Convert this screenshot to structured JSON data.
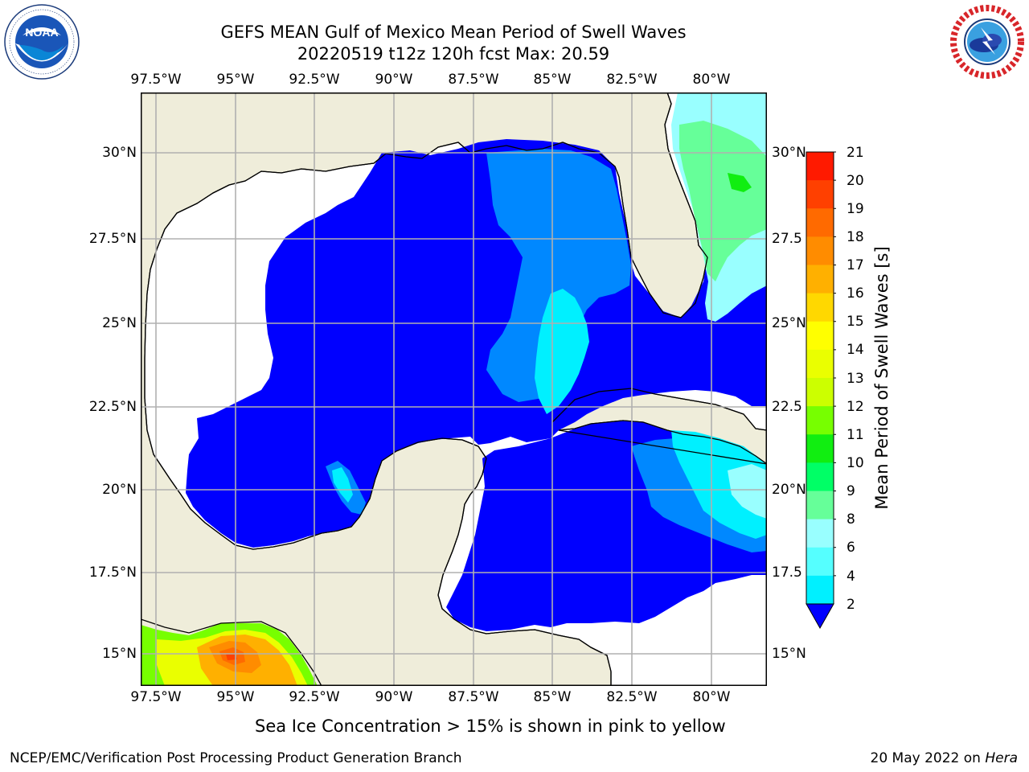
{
  "title": {
    "line1": "GEFS MEAN Gulf of Mexico Mean Period of Swell Waves",
    "line2": "20220519 t12z 120h fcst   Max: 20.59"
  },
  "logos": {
    "left_icon": "noaa-logo",
    "left_ring_text": "NATIONAL OCEANIC AND ATMOSPHERIC ADMINISTRATION · U.S. DEPARTMENT OF COMMERCE ·",
    "left_center_text": "NOAA",
    "right_icon": "nws-logo",
    "right_ring_text": "NATIONAL WEATHER SERVICE"
  },
  "map": {
    "lon_labels": [
      "97.5°W",
      "95°W",
      "92.5°W",
      "90°W",
      "87.5°W",
      "85°W",
      "82.5°W",
      "80°W"
    ],
    "lat_labels_left": [
      "30°N",
      "27.5°N",
      "25°N",
      "22.5°N",
      "20°N",
      "17.5°N",
      "15°N"
    ],
    "lat_labels_right": [
      "30°N",
      "27.5",
      "25°N",
      "22.5",
      "20°N",
      "17.5",
      "15°N"
    ],
    "colors": {
      "land": "#efedda",
      "ocean_none": "#ffffff",
      "grid": "#b0b0b0"
    }
  },
  "colorbar": {
    "label": "Mean Period of Swell Waves [s]",
    "ticks": [
      "21",
      "20",
      "19",
      "18",
      "17",
      "16",
      "15",
      "14",
      "13",
      "12",
      "11",
      "10",
      "9",
      "8",
      "6",
      "4",
      "2"
    ],
    "colors": [
      "#ff1a00",
      "#ff4000",
      "#ff6a00",
      "#ff8c00",
      "#ffb000",
      "#ffd800",
      "#ffff00",
      "#eaff00",
      "#ccff00",
      "#77ff00",
      "#11ee11",
      "#00ff66",
      "#66ff99",
      "#99ffff",
      "#55ffff",
      "#00f0ff",
      "#0088ff"
    ],
    "extend_color": "#0000ff"
  },
  "note": "Sea Ice Concentration > 15% is shown in pink to yellow",
  "footer": {
    "left": "NCEP/EMC/Verification Post Processing Product Generation Branch",
    "date": "20 May 2022 on ",
    "machine": "Hera"
  }
}
